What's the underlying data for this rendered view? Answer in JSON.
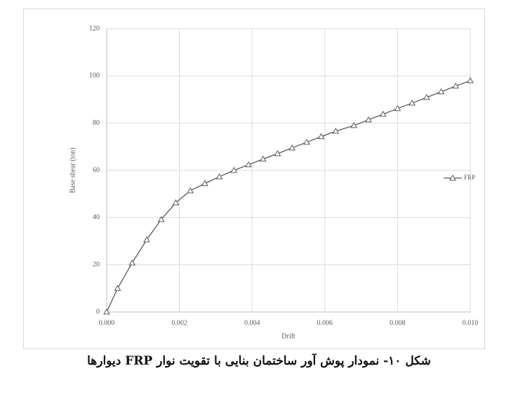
{
  "chart_data": {
    "type": "line",
    "x_label": "Drift",
    "y_label": "Base shear (ton)",
    "x": [
      0,
      0.0003,
      0.0007,
      0.0011,
      0.0015,
      0.0019,
      0.0023,
      0.0027,
      0.0031,
      0.0035,
      0.0039,
      0.0043,
      0.0047,
      0.0051,
      0.0055,
      0.0059,
      0.0063,
      0.0068,
      0.0072,
      0.0076,
      0.008,
      0.0084,
      0.0088,
      0.0092,
      0.0096,
      0.01
    ],
    "series": [
      {
        "name": "FRP",
        "color": "#595959",
        "values": [
          0,
          10,
          20.8,
          30.6,
          39.2,
          46.3,
          51.4,
          54.4,
          57.3,
          60,
          62.4,
          64.8,
          67.1,
          69.5,
          71.9,
          74.3,
          76.6,
          79,
          81.4,
          83.8,
          86.2,
          88.5,
          90.9,
          93.3,
          95.7,
          98
        ]
      }
    ],
    "xlim": [
      0,
      0.01
    ],
    "xticks": [
      {
        "value": 0,
        "label": "0.000"
      },
      {
        "value": 0.002,
        "label": "0.002"
      },
      {
        "value": 0.004,
        "label": "0.004"
      },
      {
        "value": 0.006,
        "label": "0.006"
      },
      {
        "value": 0.008,
        "label": "0.008"
      },
      {
        "value": 0.01,
        "label": "0.010"
      }
    ],
    "ylim": [
      0,
      120
    ],
    "yticks": [
      0,
      20,
      40,
      60,
      80,
      100,
      120
    ],
    "grid": true,
    "legend": "right"
  },
  "caption": "شکل ۱۰- نمودار پوش آور ساختمان بنایی با تقویت نوار FRP دیوارها"
}
